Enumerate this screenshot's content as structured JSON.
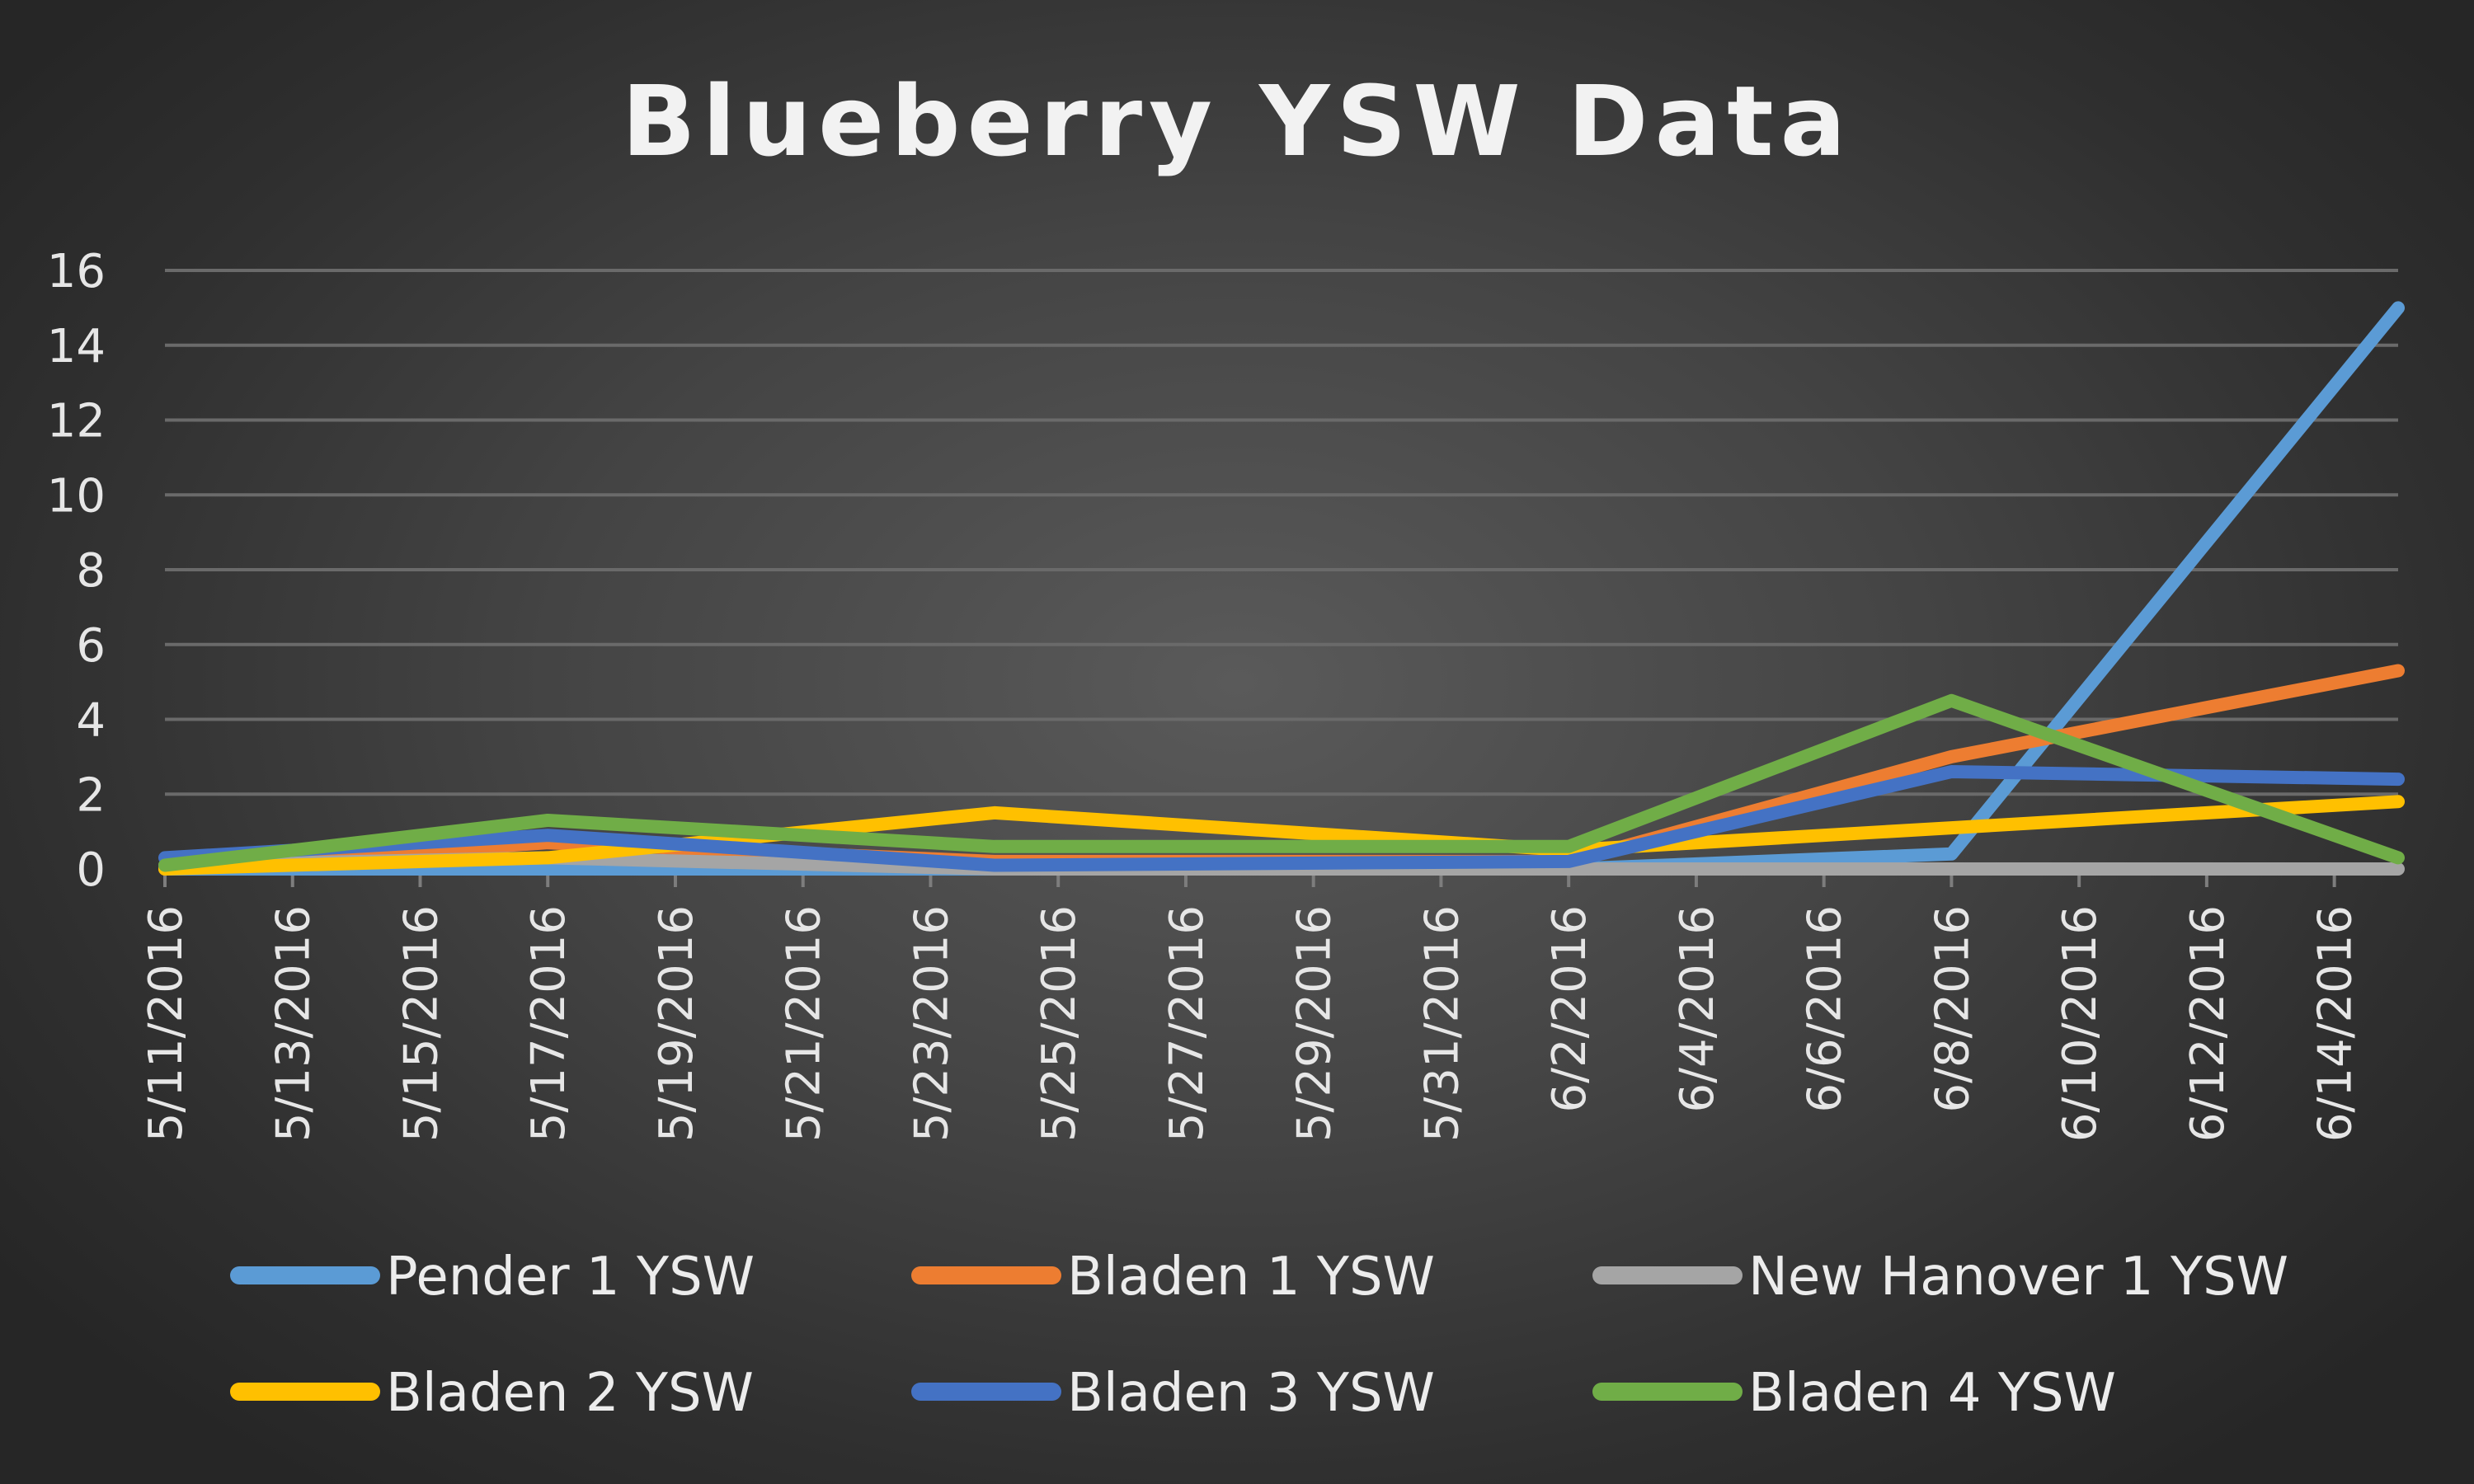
{
  "chart_data": {
    "type": "line",
    "title": "Blueberry YSW Data",
    "xlabel": "",
    "ylabel": "",
    "ylim": [
      0,
      16
    ],
    "y_ticks": [
      0,
      2,
      4,
      6,
      8,
      10,
      12,
      14,
      16
    ],
    "x_tick_labels": [
      "5/11/2016",
      "5/13/2016",
      "5/15/2016",
      "5/17/2016",
      "5/19/2016",
      "5/21/2016",
      "5/23/2016",
      "5/25/2016",
      "5/27/2016",
      "5/29/2016",
      "5/31/2016",
      "6/2/2016",
      "6/4/2016",
      "6/6/2016",
      "6/8/2016",
      "6/10/2016",
      "6/12/2016",
      "6/14/2016"
    ],
    "x_range": [
      "5/11/2016",
      "6/15/2016"
    ],
    "grid": true,
    "legend_position": "bottom",
    "x": [
      "5/11/2016",
      "5/17/2016",
      "5/24/2016",
      "6/2/2016",
      "6/8/2016",
      "6/15/2016"
    ],
    "series": [
      {
        "name": "Pender 1 YSW",
        "color": "#5b9bd5",
        "values": [
          0,
          0,
          0,
          0,
          0.4,
          15
        ]
      },
      {
        "name": "Bladen 1 YSW",
        "color": "#ed7d31",
        "values": [
          0,
          0.7,
          0.2,
          0.2,
          3.0,
          5.3
        ]
      },
      {
        "name": "New Hanover 1 YSW",
        "color": "#a5a5a5",
        "values": [
          0.1,
          0.3,
          0,
          0,
          0,
          0
        ]
      },
      {
        "name": "Bladen 2 YSW",
        "color": "#ffc000",
        "values": [
          0,
          0.3,
          1.5,
          0.5,
          1.1,
          1.8
        ]
      },
      {
        "name": "Bladen 3 YSW",
        "color": "#4472c4",
        "values": [
          0.3,
          0.9,
          0.1,
          0.2,
          2.6,
          2.4
        ]
      },
      {
        "name": "Bladen 4 YSW",
        "color": "#70ad47",
        "values": [
          0.1,
          1.3,
          0.6,
          0.6,
          4.5,
          0.3
        ]
      }
    ]
  }
}
